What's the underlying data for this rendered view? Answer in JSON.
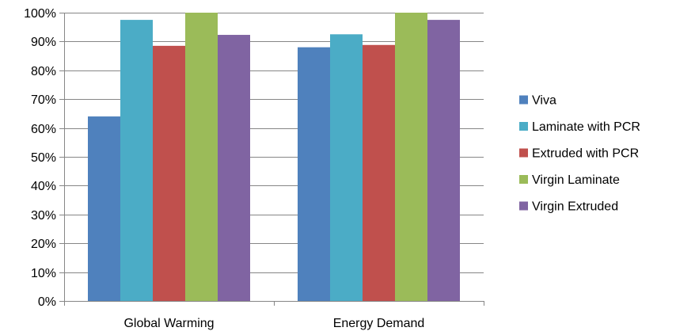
{
  "chart_data": {
    "type": "bar",
    "categories": [
      "Global Warming",
      "Energy Demand"
    ],
    "series": [
      {
        "name": "Viva",
        "values": [
          64,
          88
        ],
        "color": "#4F81BD"
      },
      {
        "name": "Laminate with PCR",
        "values": [
          97.5,
          92.5
        ],
        "color": "#4BACC6"
      },
      {
        "name": "Extruded with PCR",
        "values": [
          88.5,
          88.8
        ],
        "color": "#C0504D"
      },
      {
        "name": "Virgin Laminate",
        "values": [
          100,
          100
        ],
        "color": "#9BBB59"
      },
      {
        "name": "Virgin Extruded",
        "values": [
          92.3,
          97.5
        ],
        "color": "#8064A2"
      }
    ],
    "ylim": [
      0,
      100
    ],
    "yticks": [
      0,
      10,
      20,
      30,
      40,
      50,
      60,
      70,
      80,
      90,
      100
    ],
    "ytick_format": "percent",
    "title": "",
    "xlabel": "",
    "ylabel": "",
    "grid": true,
    "legend_position": "right"
  }
}
